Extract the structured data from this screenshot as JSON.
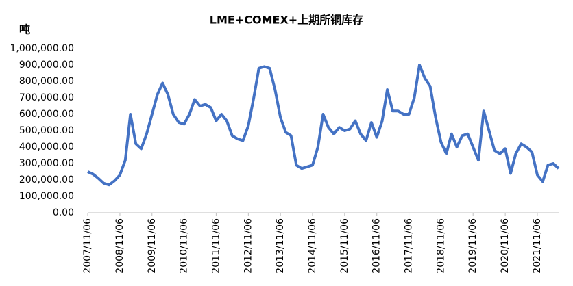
{
  "chart_data": {
    "type": "line",
    "title": "LME+COMEX+上期所铜库存",
    "y_label": "吨",
    "color": "#4472c4",
    "x": [
      "2007/11/06",
      "2008/01/06",
      "2008/03/06",
      "2008/05/06",
      "2008/07/06",
      "2008/09/06",
      "2008/11/06",
      "2009/01/06",
      "2009/03/06",
      "2009/05/06",
      "2009/07/06",
      "2009/09/06",
      "2009/11/06",
      "2010/01/06",
      "2010/03/06",
      "2010/05/06",
      "2010/07/06",
      "2010/09/06",
      "2010/11/06",
      "2011/01/06",
      "2011/03/06",
      "2011/05/06",
      "2011/07/06",
      "2011/09/06",
      "2011/11/06",
      "2012/01/06",
      "2012/03/06",
      "2012/05/06",
      "2012/07/06",
      "2012/09/06",
      "2012/11/06",
      "2013/01/06",
      "2013/03/06",
      "2013/05/06",
      "2013/07/06",
      "2013/09/06",
      "2013/11/06",
      "2014/01/06",
      "2014/03/06",
      "2014/05/06",
      "2014/07/06",
      "2014/09/06",
      "2014/11/06",
      "2015/01/06",
      "2015/03/06",
      "2015/05/06",
      "2015/07/06",
      "2015/09/06",
      "2015/11/06",
      "2016/01/06",
      "2016/03/06",
      "2016/05/06",
      "2016/07/06",
      "2016/09/06",
      "2016/11/06",
      "2017/01/06",
      "2017/03/06",
      "2017/05/06",
      "2017/07/06",
      "2017/09/06",
      "2017/11/06",
      "2018/01/06",
      "2018/03/06",
      "2018/05/06",
      "2018/07/06",
      "2018/09/06",
      "2018/11/06",
      "2019/01/06",
      "2019/03/06",
      "2019/05/06",
      "2019/07/06",
      "2019/09/06",
      "2019/11/06",
      "2020/01/06",
      "2020/03/06",
      "2020/05/06",
      "2020/07/06",
      "2020/09/06",
      "2020/11/06",
      "2021/01/06",
      "2021/03/06",
      "2021/05/06",
      "2021/07/06",
      "2021/09/06",
      "2021/11/06",
      "2022/01/06",
      "2022/03/06",
      "2022/05/06",
      "2022/07/06"
    ],
    "values": [
      250000,
      235000,
      210000,
      180000,
      170000,
      195000,
      230000,
      320000,
      600000,
      420000,
      390000,
      480000,
      600000,
      720000,
      790000,
      720000,
      600000,
      550000,
      540000,
      600000,
      690000,
      650000,
      660000,
      640000,
      560000,
      600000,
      560000,
      470000,
      450000,
      440000,
      530000,
      700000,
      880000,
      890000,
      880000,
      750000,
      580000,
      490000,
      470000,
      290000,
      270000,
      280000,
      290000,
      400000,
      600000,
      520000,
      480000,
      520000,
      500000,
      510000,
      560000,
      480000,
      440000,
      550000,
      460000,
      560000,
      750000,
      620000,
      620000,
      600000,
      600000,
      700000,
      900000,
      820000,
      770000,
      580000,
      430000,
      360000,
      480000,
      400000,
      470000,
      480000,
      400000,
      320000,
      620000,
      500000,
      380000,
      360000,
      390000,
      240000,
      360000,
      420000,
      400000,
      370000,
      230000,
      190000,
      290000,
      300000,
      270000
    ],
    "xlim": [
      "2007/11/06",
      "2022/07/06"
    ],
    "xticks": [
      "2007/11/06",
      "2008/11/06",
      "2009/11/06",
      "2010/11/06",
      "2011/11/06",
      "2012/11/06",
      "2013/11/06",
      "2014/11/06",
      "2015/11/06",
      "2016/11/06",
      "2017/11/06",
      "2018/11/06",
      "2019/11/06",
      "2020/11/06",
      "2021/11/06"
    ],
    "ylim": [
      0,
      1000000
    ],
    "yticks": [
      {
        "value": 0,
        "label": "0.00"
      },
      {
        "value": 100000,
        "label": "100,000.00"
      },
      {
        "value": 200000,
        "label": "200,000.00"
      },
      {
        "value": 300000,
        "label": "300,000.00"
      },
      {
        "value": 400000,
        "label": "400,000.00"
      },
      {
        "value": 500000,
        "label": "500,000.00"
      },
      {
        "value": 600000,
        "label": "600,000.00"
      },
      {
        "value": 700000,
        "label": "700,000.00"
      },
      {
        "value": 800000,
        "label": "800,000.00"
      },
      {
        "value": 900000,
        "label": "900,000.00"
      },
      {
        "value": 1000000,
        "label": "1,000,000.00"
      }
    ]
  }
}
